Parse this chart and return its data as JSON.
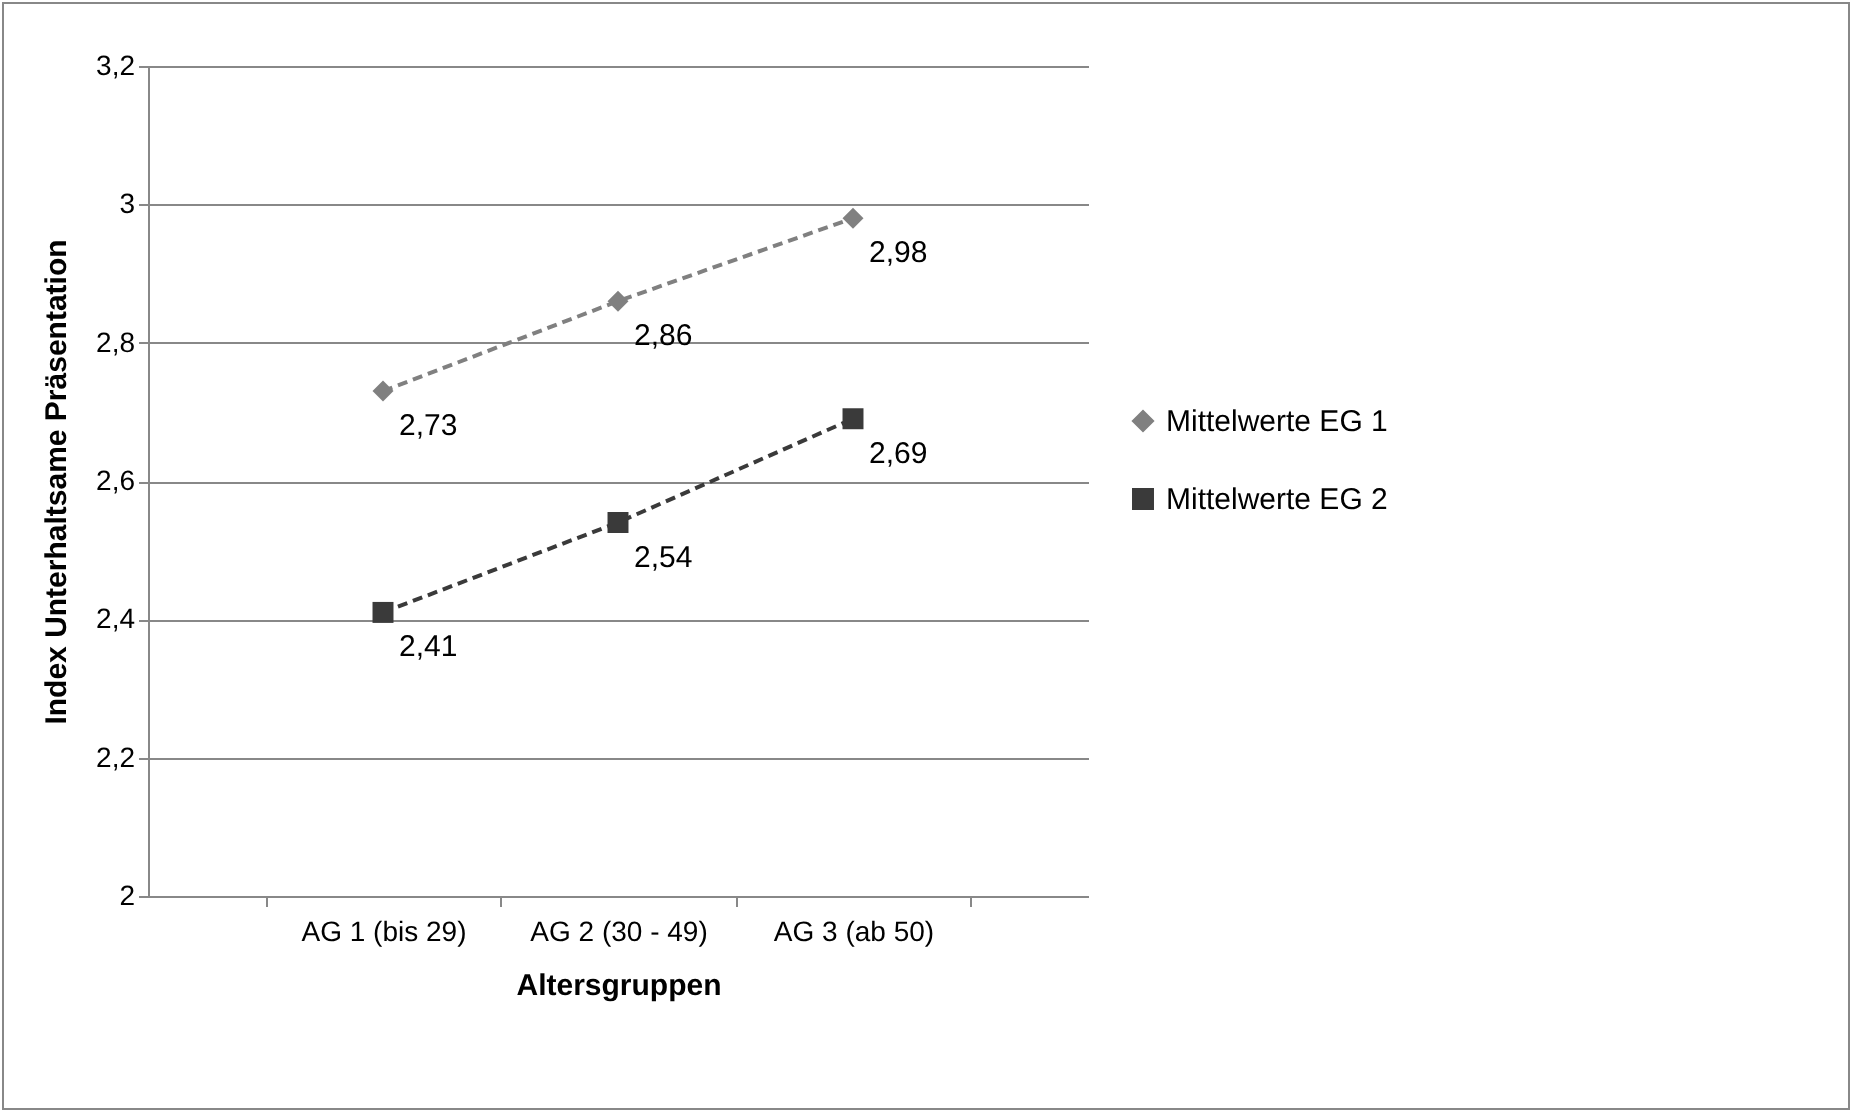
{
  "chart_data": {
    "type": "line",
    "xlabel": "Altersgruppen",
    "ylabel": "Index Unterhaltsame Präsentation",
    "categories": [
      "AG 1 (bis 29)",
      "AG 2 (30 - 49)",
      "AG 3 (ab 50)"
    ],
    "series": [
      {
        "name": "Mittelwerte EG 1",
        "color": "#808080",
        "marker": "diamond",
        "values": [
          2.73,
          2.86,
          2.98
        ],
        "value_labels": [
          "2,73",
          "2,86",
          "2,98"
        ]
      },
      {
        "name": "Mittelwerte EG 2",
        "color": "#3a3a3a",
        "marker": "square",
        "values": [
          2.41,
          2.54,
          2.69
        ],
        "value_labels": [
          "2,41",
          "2,54",
          "2,69"
        ]
      }
    ],
    "ylim": [
      2,
      3.2
    ],
    "yticks": [
      2,
      {
        "value": 2.2,
        "label": "2,2"
      },
      {
        "value": 2.4,
        "label": "2,4"
      },
      {
        "value": 2.6,
        "label": "2,6"
      },
      {
        "value": 2.8,
        "label": "2,8"
      },
      3,
      {
        "value": 3.2,
        "label": "3,2"
      }
    ],
    "grid": "y",
    "legend": "right",
    "line_style": "dashed"
  }
}
